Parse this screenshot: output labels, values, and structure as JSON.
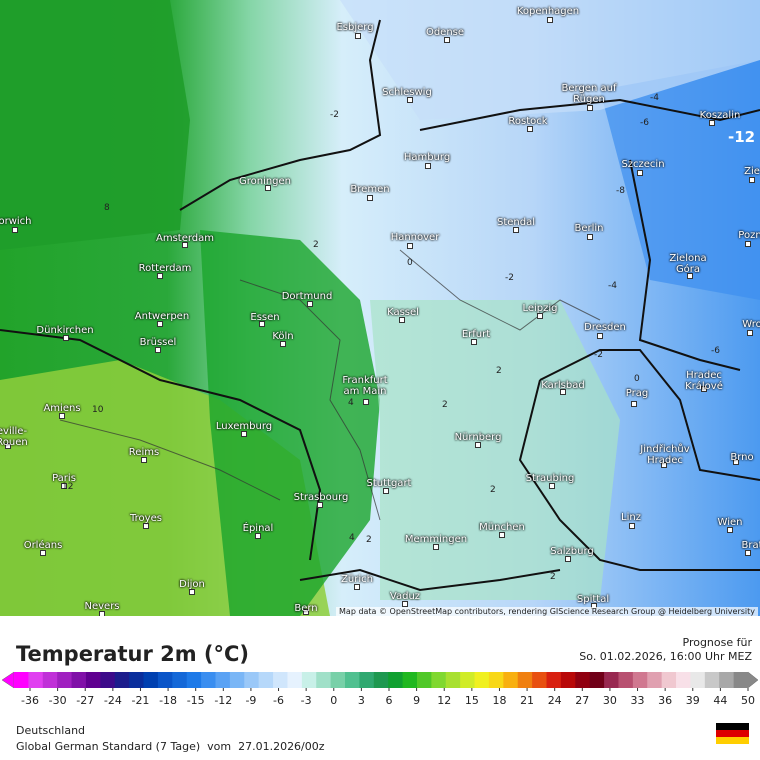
{
  "map": {
    "cities": [
      "Esbjerg",
      "Odense",
      "Kopenhagen",
      "Schleswig",
      "Bergen auf Rügen",
      "Rostock",
      "Koszalin",
      "Hamburg",
      "Szczecin",
      "Groningen",
      "Bremen",
      "orwich",
      "Amsterdam",
      "Hannover",
      "Stendal",
      "Berlin",
      "Pozn",
      "Rotterdam",
      "Zielona Góra",
      "Dortmund",
      "Leipzig",
      "Antwerpen",
      "Kassel",
      "Essen",
      "Dünkirchen",
      "Dresden",
      "Wro",
      "Köln",
      "Brüssel",
      "Erfurt",
      "Frankfurt am Main",
      "Karlsbad",
      "Hradec Králové",
      "Prag",
      "Amiens",
      "eville-Rouen",
      "Luxemburg",
      "Nürnberg",
      "Jindřichův Hradec",
      "Brno",
      "Reims",
      "Paris",
      "Straubing",
      "Stuttgart",
      "Strasbourg",
      "Troyes",
      "Épinal",
      "München",
      "Wien",
      "Brat",
      "Linz",
      "Orléans",
      "Memmingen",
      "Salzburg",
      "Dijon",
      "Zürich",
      "Vaduz",
      "Spittal",
      "Nevers",
      "Bern",
      "Zie"
    ],
    "isoline_labels": [
      -2,
      -4,
      -6,
      -12,
      8,
      2,
      0,
      -2,
      -4,
      -6,
      -2,
      0,
      2,
      10,
      12,
      2,
      4,
      2,
      2,
      4,
      2,
      -8
    ],
    "attribution": "Map data © OpenStreetMap contributors, rendering GIScience Research Group @ Heidelberg University"
  },
  "legend": {
    "title": "Temperatur 2m (°C)",
    "ticks": [
      -36,
      -30,
      -27,
      -24,
      -21,
      -18,
      -15,
      -12,
      -9,
      -6,
      -3,
      0,
      3,
      6,
      9,
      12,
      15,
      18,
      21,
      24,
      27,
      30,
      33,
      36,
      39,
      44,
      50
    ],
    "colors": [
      "#ff00ff",
      "#e040f0",
      "#c030d8",
      "#a020c0",
      "#8010a8",
      "#600090",
      "#3c0a8a",
      "#1c1c8c",
      "#0a2e9c",
      "#0040b0",
      "#0a55c8",
      "#1468d8",
      "#1e7ae8",
      "#3a8ef0",
      "#5aa2f4",
      "#7ab6f6",
      "#9ac8f8",
      "#b6d8fa",
      "#d0e6fc",
      "#e6f2fe",
      "#c8f0e8",
      "#a0e0c8",
      "#78d0a8",
      "#50c090",
      "#30a870",
      "#1e9850",
      "#10a030",
      "#20b820",
      "#50c828",
      "#80d830",
      "#a8e030",
      "#d0ec28",
      "#f0f020",
      "#f8d818",
      "#f8b010",
      "#f08010",
      "#e85010",
      "#d82010",
      "#b80808",
      "#900010",
      "#700018",
      "#982850",
      "#b85070",
      "#d07890",
      "#e0a0b0",
      "#f0c8d0",
      "#f8e0e8",
      "#e8e8e8",
      "#c8c8c8",
      "#a8a8a8",
      "#888888"
    ]
  },
  "forecast": {
    "label": "Prognose für",
    "time": "So. 01.02.2026, 16:00 Uhr MEZ"
  },
  "footer": {
    "region": "Deutschland",
    "model": "Global German Standard (7 Tage)  vom  27.01.2026/00z"
  }
}
